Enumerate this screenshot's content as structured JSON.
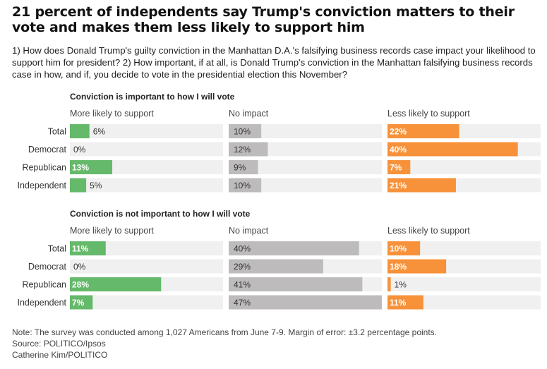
{
  "title": "21 percent of independents say Trump's conviction matters to their vote and makes them less likely to support him",
  "subtitle": "1) How does Donald Trump's guilty conviction in the Manhattan D.A.'s falsifying business records case impact your likelihood to support him for president? 2) How important, if at all, is Donald Trump's conviction in the Manhattan falsifying business records case in how, and if, you decide to vote in the presidential election this November?",
  "colors": {
    "more_likely": "#65b96a",
    "no_impact": "#bdbbbb",
    "less_likely": "#f7923a",
    "track": "#f0f0f0"
  },
  "chart_data": [
    {
      "type": "bar",
      "title": "Conviction is important to how I will vote",
      "categories": [
        "Total",
        "Democrat",
        "Republican",
        "Independent"
      ],
      "series": [
        {
          "name": "More likely to support",
          "values": [
            6,
            0,
            13,
            5
          ]
        },
        {
          "name": "No impact",
          "values": [
            10,
            12,
            9,
            10
          ]
        },
        {
          "name": "Less likely to support",
          "values": [
            22,
            40,
            7,
            21
          ]
        }
      ],
      "value_suffix": "%",
      "xlim": [
        0,
        47
      ]
    },
    {
      "type": "bar",
      "title": "Conviction is not important to how I will vote",
      "categories": [
        "Total",
        "Democrat",
        "Republican",
        "Independent"
      ],
      "series": [
        {
          "name": "More likely to support",
          "values": [
            11,
            0,
            28,
            7
          ]
        },
        {
          "name": "No impact",
          "values": [
            40,
            29,
            41,
            47
          ]
        },
        {
          "name": "Less likely to support",
          "values": [
            10,
            18,
            1,
            11
          ]
        }
      ],
      "value_suffix": "%",
      "xlim": [
        0,
        47
      ]
    }
  ],
  "notes": {
    "note": "Note: The survey was conducted among 1,027 Americans from June 7-9. Margin of error: ±3.2 percentage points.",
    "source": "Source: POLITICO/Ipsos",
    "credit": "Catherine Kim/POLITICO"
  }
}
